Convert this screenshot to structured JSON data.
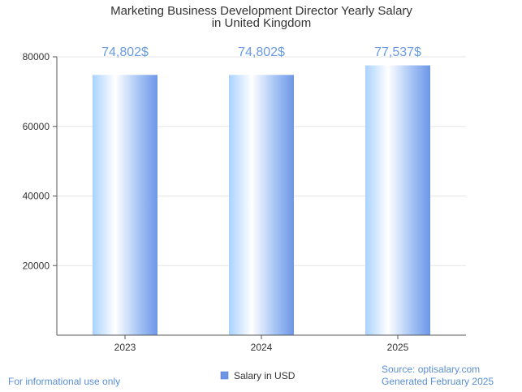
{
  "chart_data": {
    "type": "bar",
    "title_lines": [
      "Marketing Business Development Director Yearly Salary",
      "in United Kingdom"
    ],
    "categories": [
      "2023",
      "2024",
      "2025"
    ],
    "series": [
      {
        "name": "Salary in USD",
        "values": [
          74802,
          74802,
          77537
        ]
      }
    ],
    "data_labels": [
      "74,802$",
      "74,802$",
      "77,537$"
    ],
    "xlabel": "",
    "ylabel": "",
    "ylim": [
      0,
      80000
    ],
    "yticks": [
      20000,
      40000,
      60000,
      80000
    ],
    "ytick_labels": [
      "20000",
      "40000",
      "60000",
      "80000"
    ],
    "grid": true,
    "legend_position": "bottom"
  },
  "footer": {
    "left_note": "For informational use only",
    "source": "Source: optisalary.com",
    "generated": "Generated February 2025"
  },
  "colors": {
    "bar_light": "#d6ecff",
    "bar_mid": "#8fbaf5",
    "bar_dark": "#6d96e6",
    "label": "#6a9be6",
    "grid": "#e6e6e6",
    "axis": "#555555",
    "legend_swatch": "#6d96e6"
  }
}
